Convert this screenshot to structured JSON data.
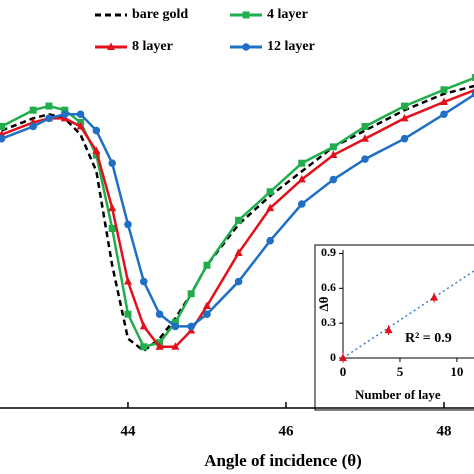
{
  "chart_data": [
    {
      "type": "line",
      "xlabel": "Angle of incidence (θ)",
      "x": [
        42.4,
        42.8,
        43.0,
        43.2,
        43.4,
        43.6,
        43.8,
        44.0,
        44.2,
        44.4,
        44.6,
        44.8,
        45.0,
        45.4,
        45.8,
        46.2,
        46.6,
        47.0,
        47.5,
        48.0,
        48.4
      ],
      "xlim": [
        42.38,
        48.38
      ],
      "xticks": [
        44,
        46,
        48
      ],
      "ylim": [
        0,
        1
      ],
      "series": [
        {
          "name": "bare gold",
          "color": "#000000",
          "dash": true,
          "marker": "none",
          "values": [
            0.68,
            0.71,
            0.72,
            0.71,
            0.67,
            0.58,
            0.35,
            0.17,
            0.14,
            0.17,
            0.22,
            0.28,
            0.35,
            0.45,
            0.52,
            0.58,
            0.64,
            0.68,
            0.73,
            0.77,
            0.79
          ]
        },
        {
          "name": "4 layer",
          "color": "#1fae4b",
          "marker": "square",
          "values": [
            0.69,
            0.73,
            0.74,
            0.73,
            0.7,
            0.62,
            0.44,
            0.23,
            0.15,
            0.16,
            0.21,
            0.28,
            0.35,
            0.46,
            0.53,
            0.6,
            0.64,
            0.69,
            0.74,
            0.78,
            0.81
          ]
        },
        {
          "name": "8 layer",
          "color": "#e3101c",
          "marker": "triangle",
          "values": [
            0.67,
            0.7,
            0.71,
            0.71,
            0.69,
            0.63,
            0.49,
            0.31,
            0.2,
            0.15,
            0.15,
            0.19,
            0.25,
            0.38,
            0.49,
            0.56,
            0.62,
            0.66,
            0.71,
            0.75,
            0.78
          ]
        },
        {
          "name": "12 layer",
          "color": "#1f6fc5",
          "marker": "circle",
          "values": [
            0.66,
            0.69,
            0.71,
            0.72,
            0.72,
            0.68,
            0.6,
            0.45,
            0.31,
            0.23,
            0.2,
            0.2,
            0.23,
            0.31,
            0.41,
            0.5,
            0.56,
            0.61,
            0.66,
            0.72,
            0.77
          ]
        }
      ]
    },
    {
      "type": "scatter",
      "xlabel": "Number of laye",
      "ylabel": "Δθ",
      "annotation": "R² = 0.9",
      "x": [
        0,
        4,
        8
      ],
      "values": [
        0,
        0.24,
        0.52
      ],
      "color": "#e3101c",
      "trend": {
        "x": [
          0,
          11.5
        ],
        "values": [
          0,
          0.75
        ],
        "color": "#3a7fc8"
      },
      "xlim": [
        0,
        11.5
      ],
      "xticks": [
        0,
        5,
        10
      ],
      "ylim": [
        0,
        0.93
      ],
      "yticks": [
        0,
        0.3,
        0.6,
        0.9
      ]
    }
  ]
}
